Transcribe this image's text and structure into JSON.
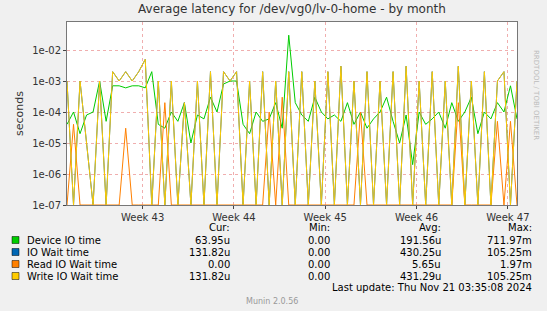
{
  "chart_data": {
    "type": "line",
    "title": "Average latency for /dev/vg0/lv-0-home - by month",
    "y_label": "seconds",
    "watermark": "RRDTOOL / TOBI OETIKER",
    "footer": "Munin 2.0.56",
    "last_update": "Last update: Thu Nov 21 03:35:08 2024",
    "stats_columns": [
      "Cur:",
      "Min:",
      "Avg:",
      "Max:"
    ],
    "log": "y",
    "grid": true,
    "xlim": [
      0,
      34.5
    ],
    "xticks": [
      {
        "value": 5.8,
        "label": "Week 43"
      },
      {
        "value": 12.8,
        "label": "Week 44"
      },
      {
        "value": 19.8,
        "label": "Week 45"
      },
      {
        "value": 26.8,
        "label": "Week 46"
      },
      {
        "value": 33.8,
        "label": "Week 47"
      }
    ],
    "ylim": [
      1e-07,
      0.08
    ],
    "yticks": [
      {
        "value": 1e-07,
        "label": "1e-07"
      },
      {
        "value": 1e-06,
        "label": "1e-06"
      },
      {
        "value": 1e-05,
        "label": "1e-05"
      },
      {
        "value": 0.0001,
        "label": "1e-04"
      },
      {
        "value": 0.001,
        "label": "1e-03"
      },
      {
        "value": 0.01,
        "label": "1e-02"
      }
    ],
    "x": [
      0,
      0.5,
      1,
      1.5,
      2,
      2.5,
      3,
      3.5,
      4,
      4.5,
      5,
      5.5,
      6,
      6.5,
      7,
      7.5,
      8,
      8.5,
      9,
      9.5,
      10,
      10.5,
      11,
      11.5,
      12,
      12.5,
      13,
      13.5,
      14,
      14.5,
      15,
      15.5,
      16,
      16.5,
      17,
      17.5,
      18,
      18.5,
      19,
      19.5,
      20,
      20.5,
      21,
      21.5,
      22,
      22.5,
      23,
      23.5,
      24,
      24.5,
      25,
      25.5,
      26,
      26.5,
      27,
      27.5,
      28,
      28.5,
      29,
      29.5,
      30,
      30.5,
      31,
      31.5,
      32,
      32.5,
      33,
      33.5,
      34,
      34.5
    ],
    "series": [
      {
        "name": "Device IO time",
        "color": "#00cc00",
        "stats": [
          "63.95u",
          "0.00",
          "191.56u",
          "711.97m"
        ],
        "values": [
          4e-05,
          0.0001,
          2e-05,
          8e-05,
          0.0001,
          0.001,
          5e-05,
          0.0007,
          0.0007,
          0.0006,
          0.0007,
          0.0007,
          0.0006,
          0.002,
          4e-05,
          3e-05,
          0.0001,
          5e-05,
          0.0002,
          1e-05,
          8e-05,
          6e-05,
          0.0003,
          0.0001,
          0.0008,
          0.001,
          0.001,
          4e-05,
          2e-05,
          0.0001,
          5e-05,
          6e-05,
          0.0002,
          3e-05,
          0.03,
          0.0002,
          8e-05,
          5e-05,
          0.0003,
          0.0001,
          6e-05,
          8e-05,
          5e-05,
          0.0002,
          4e-05,
          0.0001,
          3e-05,
          6e-05,
          0.0001,
          0.0003,
          5e-05,
          1e-05,
          8e-05,
          2e-06,
          0.0001,
          4e-05,
          6e-05,
          0.0001,
          3e-05,
          0.0002,
          5e-05,
          0.0001,
          0.0003,
          2e-05,
          0.0001,
          6e-05,
          0.0002,
          0.0001,
          0.0007,
          6e-05
        ]
      },
      {
        "name": "IO Wait time",
        "color": "#0066b3",
        "stats": [
          "131.82u",
          "0.00",
          "430.25u",
          "105.25m"
        ],
        "values": [
          0.001,
          1e-07,
          0.001,
          1e-05,
          1e-07,
          0.001,
          1e-07,
          0.002,
          0.001,
          0.002,
          0.001,
          0.002,
          0.005,
          1e-07,
          0.001,
          1e-07,
          0.001,
          1e-07,
          0.0002,
          1e-07,
          0.001,
          1e-07,
          0.002,
          1e-07,
          0.002,
          0.001,
          0.002,
          1e-07,
          0.001,
          1e-07,
          0.002,
          1e-07,
          0.001,
          1e-07,
          0.002,
          1e-07,
          0.002,
          1e-07,
          0.001,
          1e-07,
          0.002,
          1e-07,
          0.003,
          1e-07,
          0.001,
          1e-07,
          0.002,
          1e-07,
          0.001,
          1e-07,
          0.002,
          1e-07,
          0.003,
          1e-07,
          0.001,
          1e-07,
          0.002,
          1e-07,
          0.001,
          1e-07,
          0.003,
          1e-07,
          0.001,
          1e-07,
          0.002,
          1e-07,
          0.001,
          0.002,
          1e-07,
          0.001
        ]
      },
      {
        "name": "Read IO Wait time",
        "color": "#ff8000",
        "stats": [
          "0.00",
          "0.00",
          "5.65u",
          "1.97m"
        ],
        "values": [
          1e-07,
          4e-05,
          1e-07,
          1e-07,
          1e-07,
          1e-07,
          1e-07,
          1e-07,
          1e-07,
          3e-05,
          1e-07,
          1e-07,
          1e-07,
          1e-07,
          1e-07,
          0.0002,
          1e-07,
          1e-07,
          1e-07,
          1e-07,
          1e-07,
          1e-07,
          1e-07,
          1e-07,
          1e-07,
          1e-07,
          1e-07,
          1e-07,
          1e-07,
          1e-07,
          1e-07,
          0.0001,
          1e-07,
          0.0003,
          1e-07,
          1e-07,
          1e-07,
          1e-07,
          1e-07,
          1e-07,
          1e-07,
          1e-07,
          1e-07,
          1e-07,
          1e-07,
          0.0001,
          1e-07,
          1e-07,
          1e-07,
          1e-07,
          1e-07,
          1e-07,
          1e-07,
          1e-07,
          1e-07,
          1e-07,
          1e-07,
          1e-07,
          1e-07,
          1e-07,
          0.0002,
          1e-07,
          1e-07,
          1e-07,
          1e-07,
          1e-07,
          5e-05,
          1e-07,
          5e-05,
          1e-07
        ]
      },
      {
        "name": "Write IO Wait time",
        "color": "#ffcc00",
        "stats": [
          "131.82u",
          "0.00",
          "431.29u",
          "105.25m"
        ],
        "values": [
          0.001,
          1e-07,
          0.001,
          1e-05,
          1e-07,
          0.001,
          1e-07,
          0.002,
          0.001,
          0.002,
          0.001,
          0.002,
          0.005,
          1e-07,
          0.001,
          1e-07,
          0.001,
          1e-07,
          0.0002,
          1e-07,
          0.001,
          1e-07,
          0.002,
          1e-07,
          0.002,
          0.001,
          0.002,
          1e-07,
          0.001,
          1e-07,
          0.002,
          1e-07,
          0.001,
          1e-07,
          0.002,
          1e-07,
          0.002,
          1e-07,
          0.001,
          1e-07,
          0.002,
          1e-07,
          0.003,
          1e-07,
          0.001,
          1e-07,
          0.002,
          1e-07,
          0.001,
          1e-07,
          0.002,
          1e-07,
          0.003,
          1e-07,
          0.001,
          1e-07,
          0.002,
          1e-07,
          0.001,
          1e-07,
          0.003,
          1e-07,
          0.001,
          1e-07,
          0.002,
          1e-07,
          0.001,
          0.002,
          1e-07,
          0.001
        ]
      }
    ]
  }
}
